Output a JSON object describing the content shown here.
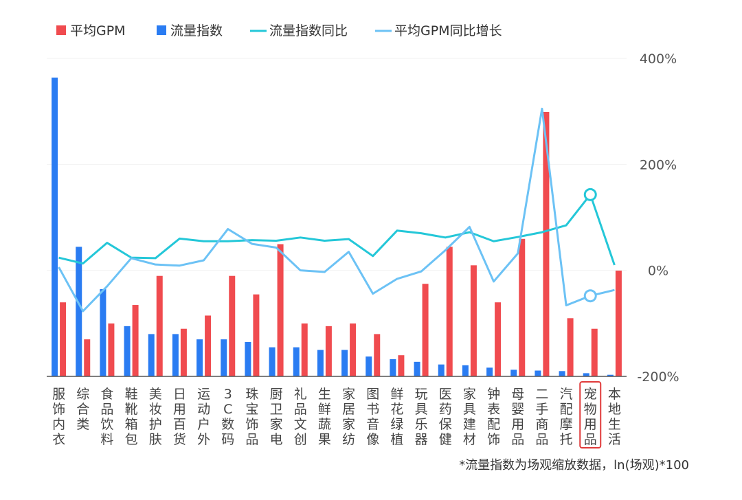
{
  "chart_data": {
    "type": "bar",
    "categories": [
      "服饰内衣",
      "综合类",
      "食品饮料",
      "鞋靴箱包",
      "美妆护肤",
      "日用百货",
      "运动户外",
      "3C数码",
      "珠宝饰品",
      "厨卫家电",
      "礼品文创",
      "生鲜蔬果",
      "家居家纺",
      "图书音像",
      "鲜花绿植",
      "玩具乐器",
      "医药保健",
      "家具建材",
      "钟表配饰",
      "母婴用品",
      "二手商品",
      "汽配摩托",
      "宠物用品",
      "本地生活"
    ],
    "highlight_category": "宠物用品",
    "series": [
      {
        "name": "平均GPM",
        "kind": "bar",
        "axis": "left",
        "color": "#f04b4f",
        "values": [
          28,
          14,
          20,
          27,
          38,
          18,
          23,
          38,
          31,
          50,
          20,
          19,
          20,
          16,
          8,
          35,
          49,
          42,
          28,
          52,
          100,
          22,
          18,
          40
        ]
      },
      {
        "name": "流量指数",
        "kind": "bar",
        "axis": "left",
        "color": "#2a7cf2",
        "values": [
          113,
          49,
          33,
          19,
          16,
          16,
          14,
          14,
          13,
          11,
          11,
          10,
          10,
          7.5,
          6.5,
          5.5,
          4.5,
          4.2,
          3.3,
          2.5,
          2.2,
          2.0,
          1.2,
          0.6
        ]
      },
      {
        "name": "流量指数同比",
        "kind": "line",
        "axis": "right",
        "color": "#24c7d8",
        "values": [
          24,
          13,
          52,
          24,
          23,
          60,
          55,
          55,
          57,
          56,
          62,
          56,
          59,
          27,
          75,
          70,
          62,
          72,
          55,
          63,
          72,
          85,
          143,
          10
        ]
      },
      {
        "name": "平均GPM同比增长",
        "kind": "line",
        "axis": "right",
        "color": "#6cc2f5",
        "values": [
          6,
          -77,
          -30,
          23,
          11,
          9,
          19,
          78,
          50,
          43,
          0,
          -3,
          35,
          -44,
          -16,
          -2,
          38,
          82,
          -21,
          32,
          305,
          -66,
          -48,
          -37
        ]
      }
    ],
    "y_right": {
      "ticks": [
        "400%",
        "200%",
        "0%",
        "-200%"
      ],
      "range": [
        -200,
        400
      ]
    },
    "note": "*流量指数为场观缩放数据，ln(场观)*100"
  }
}
